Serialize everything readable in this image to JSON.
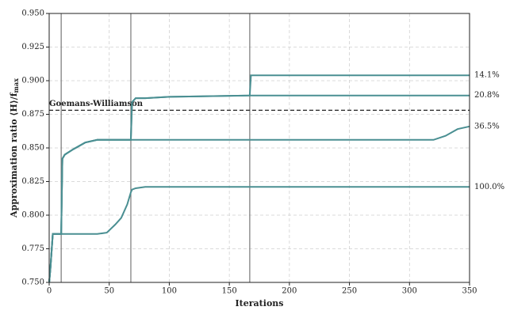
{
  "chart_data": {
    "type": "line",
    "xlabel": "Iterations",
    "ylabel": "Approximation ratio ⟨H⟩/f",
    "ylabel_subscript": "max",
    "x": [
      0,
      1,
      3,
      10,
      11,
      13,
      20,
      30,
      40,
      48,
      55,
      60,
      65,
      68,
      69,
      72,
      80,
      100,
      167,
      168,
      320,
      330,
      340,
      350
    ],
    "series": [
      {
        "name": "14.1%",
        "color": "#4a8f92",
        "values": [
          0.75,
          0.76,
          0.786,
          0.786,
          0.842,
          0.845,
          0.849,
          0.854,
          0.856,
          0.856,
          0.856,
          0.856,
          0.856,
          0.856,
          0.884,
          0.887,
          0.887,
          0.888,
          0.889,
          0.904,
          0.904,
          0.904,
          0.904,
          0.904
        ]
      },
      {
        "name": "20.8%",
        "color": "#4a8f92",
        "values": [
          0.75,
          0.76,
          0.786,
          0.786,
          0.842,
          0.845,
          0.849,
          0.854,
          0.856,
          0.856,
          0.856,
          0.856,
          0.856,
          0.856,
          0.884,
          0.887,
          0.887,
          0.888,
          0.889,
          0.889,
          0.889,
          0.889,
          0.889,
          0.889
        ]
      },
      {
        "name": "36.5%",
        "color": "#4a8f92",
        "values": [
          0.75,
          0.76,
          0.786,
          0.786,
          0.842,
          0.845,
          0.849,
          0.854,
          0.856,
          0.856,
          0.856,
          0.856,
          0.856,
          0.856,
          0.856,
          0.856,
          0.856,
          0.856,
          0.856,
          0.856,
          0.856,
          0.859,
          0.864,
          0.866
        ]
      },
      {
        "name": "100.0%",
        "color": "#4a8f92",
        "values": [
          0.75,
          0.76,
          0.786,
          0.786,
          0.786,
          0.786,
          0.786,
          0.786,
          0.786,
          0.787,
          0.793,
          0.798,
          0.808,
          0.817,
          0.819,
          0.82,
          0.821,
          0.821,
          0.821,
          0.821,
          0.821,
          0.821,
          0.821,
          0.821
        ]
      }
    ],
    "vlines": [
      10,
      68,
      167
    ],
    "hline": {
      "value": 0.878,
      "label": "Goemans-Williamson"
    },
    "xlim": [
      0,
      350
    ],
    "xticks": [
      0,
      50,
      100,
      150,
      200,
      250,
      300,
      350
    ],
    "ylim": [
      0.75,
      0.95
    ],
    "yticks": [
      {
        "value": 0.75,
        "label": "0.750"
      },
      0.775,
      {
        "value": 0.8,
        "label": "0.800"
      },
      0.825,
      {
        "value": 0.85,
        "label": "0.850"
      },
      0.875,
      {
        "value": 0.9,
        "label": "0.900"
      },
      0.925,
      {
        "value": 0.95,
        "label": "0.950"
      }
    ],
    "grid": true
  }
}
